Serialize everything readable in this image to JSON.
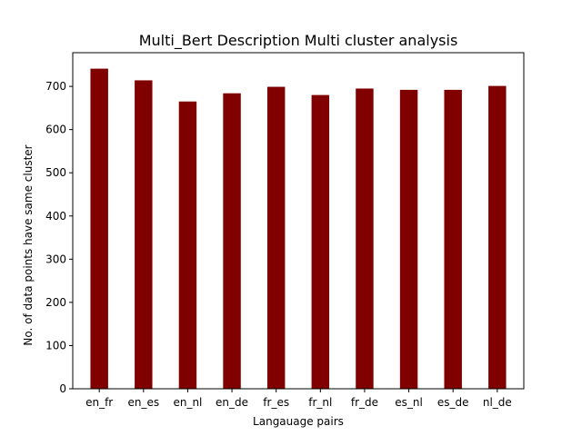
{
  "chart_data": {
    "type": "bar",
    "title": "Multi_Bert Description Multi cluster analysis",
    "xlabel": "Langauage pairs",
    "ylabel": "No. of data points have same cluster",
    "categories": [
      "en_fr",
      "en_es",
      "en_nl",
      "en_de",
      "fr_es",
      "fr_nl",
      "fr_de",
      "es_nl",
      "es_de",
      "nl_de"
    ],
    "values": [
      741,
      714,
      665,
      684,
      699,
      680,
      695,
      692,
      692,
      701
    ],
    "yticks": [
      0,
      100,
      200,
      300,
      400,
      500,
      600,
      700
    ],
    "ylim": [
      0,
      778
    ],
    "bar_color": "#800000",
    "grid": false,
    "legend": "none"
  }
}
